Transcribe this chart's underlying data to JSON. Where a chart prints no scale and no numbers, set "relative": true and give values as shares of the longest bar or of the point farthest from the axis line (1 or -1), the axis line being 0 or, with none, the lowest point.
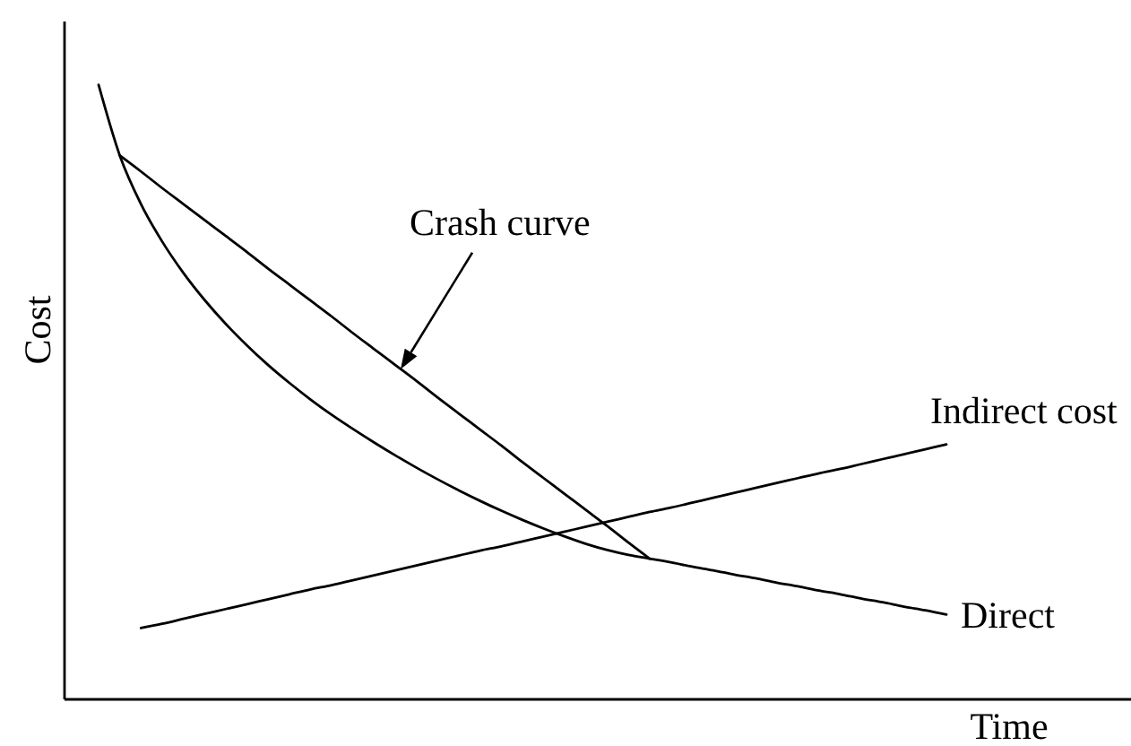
{
  "chart_data": {
    "type": "line",
    "xlabel": "Time",
    "ylabel": "Cost",
    "relative": true,
    "categories": [
      null,
      null,
      null,
      null,
      null,
      null,
      null,
      null,
      null,
      null,
      null,
      null,
      null,
      null,
      null,
      null,
      null,
      null,
      null,
      null,
      null,
      null,
      null,
      null,
      null,
      null,
      null,
      null,
      null,
      null,
      null,
      null,
      null,
      null,
      null,
      null,
      null,
      null,
      null,
      null,
      null
    ],
    "series": [
      {
        "name": "Direct",
        "color": "#000000",
        "values": [
          1.0,
          0.885,
          0.806,
          0.745,
          0.694,
          0.65,
          0.611,
          0.576,
          0.544,
          0.515,
          0.488,
          0.463,
          0.44,
          0.418,
          0.397,
          0.377,
          0.358,
          0.34,
          0.323,
          0.307,
          0.292,
          0.278,
          0.265,
          0.253,
          0.243,
          0.235,
          0.229,
          0.223,
          0.216,
          0.21,
          0.203,
          0.197,
          0.19,
          0.184,
          0.177,
          0.171,
          0.164,
          0.158,
          0.151,
          0.145,
          0.138
        ]
      },
      {
        "name": "Crash curve",
        "color": "#000000",
        "values": [
          null,
          0.885,
          0.859,
          0.832,
          0.806,
          0.78,
          0.754,
          0.728,
          0.701,
          0.675,
          0.649,
          0.623,
          0.596,
          0.57,
          0.544,
          0.518,
          0.491,
          0.465,
          0.439,
          0.413,
          0.386,
          0.36,
          0.334,
          0.308,
          0.282,
          0.255,
          0.229,
          null,
          null,
          null,
          null,
          null,
          null,
          null,
          null,
          null,
          null,
          null,
          null,
          null,
          null
        ]
      },
      {
        "name": "Indirect cost",
        "color": "#000000",
        "values": [
          null,
          null,
          0.116,
          0.123,
          0.131,
          0.139,
          0.147,
          0.155,
          0.163,
          0.171,
          0.179,
          0.186,
          0.194,
          0.202,
          0.21,
          0.218,
          0.226,
          0.234,
          0.242,
          0.249,
          0.257,
          0.265,
          0.273,
          0.281,
          0.289,
          0.297,
          0.305,
          0.312,
          0.32,
          0.328,
          0.336,
          0.344,
          0.352,
          0.36,
          0.368,
          0.375,
          0.383,
          0.391,
          0.399,
          0.407,
          0.415
        ]
      }
    ]
  }
}
